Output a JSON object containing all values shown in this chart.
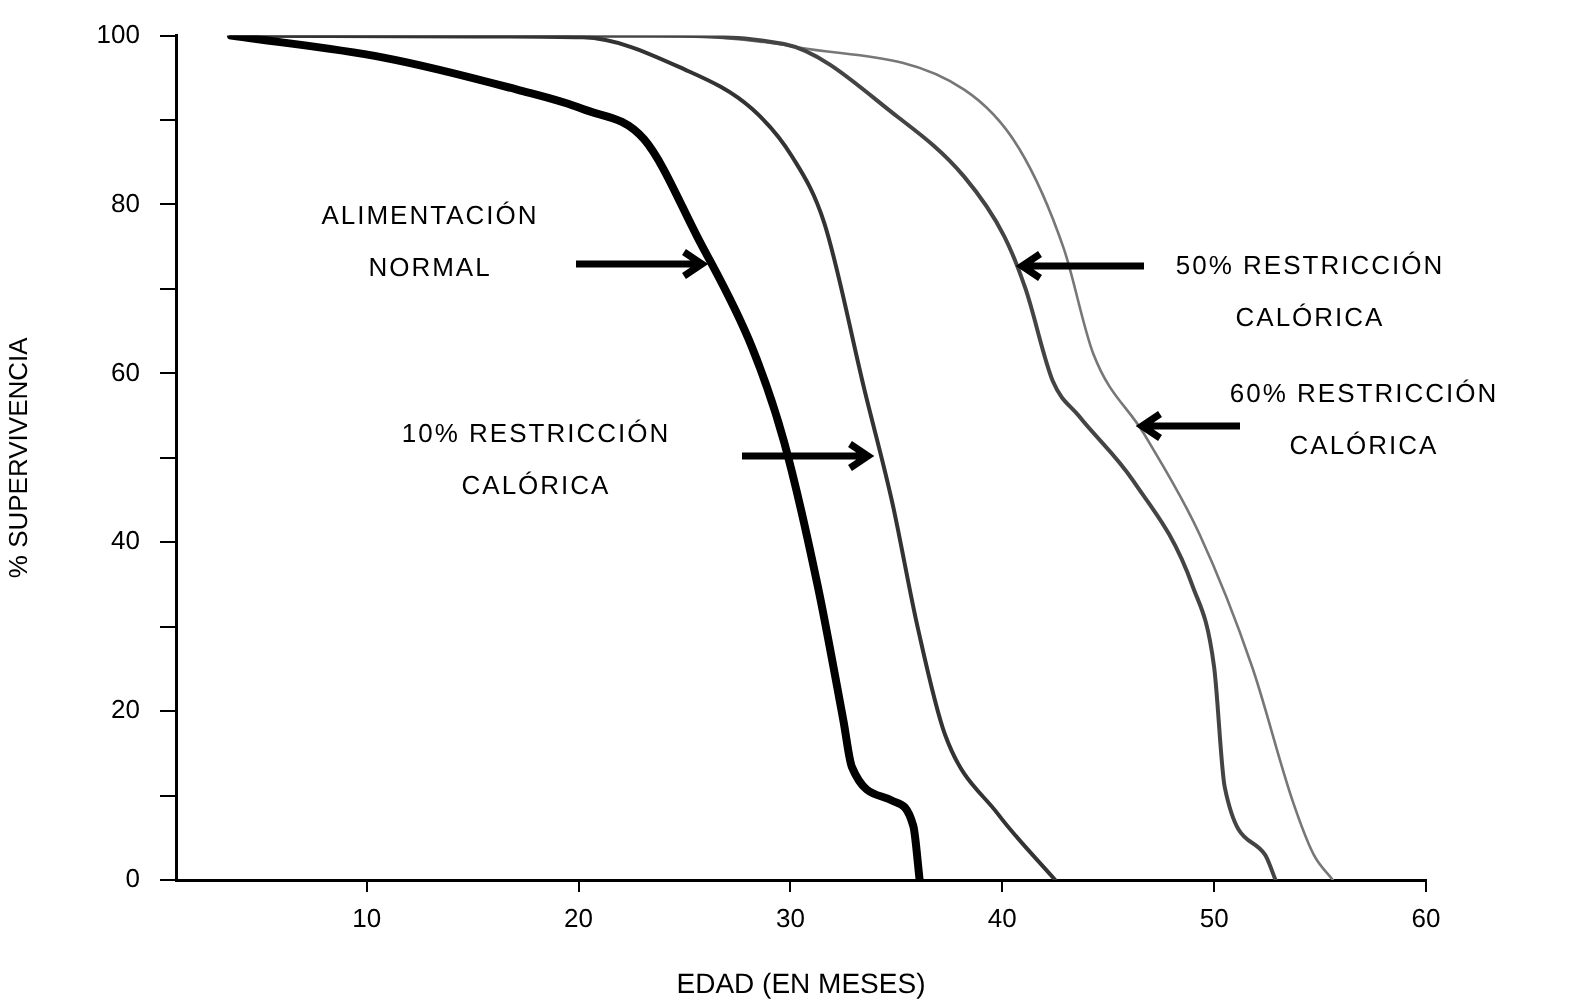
{
  "chart_data": {
    "type": "line",
    "xlabel": "EDAD (EN MESES)",
    "ylabel": "% SUPERVIVENCIA",
    "xlim": [
      1,
      60
    ],
    "xticks": [
      10,
      20,
      30,
      40,
      50,
      60
    ],
    "ylim": [
      0,
      100
    ],
    "yticks": [
      0,
      {
        "value": 10,
        "label": null
      },
      20,
      {
        "value": 30,
        "label": null
      },
      40,
      {
        "value": 50,
        "label": null
      },
      60,
      {
        "value": 70,
        "label": null
      },
      80,
      {
        "value": 90,
        "label": null
      },
      100
    ],
    "grid": false,
    "legend": false,
    "marker": "none",
    "line_style": "solid",
    "series": [
      {
        "color": "#000000",
        "x": [
          3.6,
          10.8,
          17.1,
          20.2,
          23.1,
          25.6,
          28.2,
          29.7,
          31.3,
          32.5,
          32.9,
          34.8,
          35.8,
          36.1
        ],
        "values": [
          100,
          97.4,
          93.6,
          91.3,
          87.7,
          76.2,
          63,
          51.9,
          34.7,
          18.9,
          13.4,
          9.4,
          6.4,
          0
        ]
      },
      {
        "color": "#333333",
        "x": [
          3.6,
          15,
          20.2,
          25,
          28.2,
          30.1,
          31.6,
          33.5,
          34.8,
          36,
          37.3,
          39.8,
          42.5
        ],
        "values": [
          100,
          99.9,
          99.8,
          96,
          91.3,
          85.6,
          77.8,
          58,
          44.8,
          30,
          17.2,
          7.8,
          0
        ]
      },
      {
        "color": "#444444",
        "x": [
          3.6,
          23.5,
          29.7,
          35.1,
          38.2,
          40.1,
          41.1,
          42.4,
          43.6,
          46.2,
          49,
          50,
          50.5,
          52.4,
          52.9
        ],
        "values": [
          100,
          100,
          99,
          90.3,
          83.3,
          76.2,
          70,
          59,
          55,
          47.2,
          34.7,
          25.2,
          11,
          3,
          0
        ]
      },
      {
        "color": "#777777",
        "x": [
          3.6,
          25,
          30.4,
          38.2,
          40.8,
          42.9,
          44.3,
          46.7,
          49.3,
          51.8,
          53.7,
          54.7,
          55.6
        ],
        "values": [
          100,
          99.9,
          98.6,
          93.6,
          86.6,
          74.8,
          62.3,
          52.8,
          41,
          25.2,
          9.4,
          3,
          0
        ]
      }
    ],
    "annotations": [
      "ALIMENTACIÓN NORMAL",
      "10% RESTRICCIÓN CALÓRICA",
      "50% RESTRICCIÓN CALÓRICA",
      "60% RESTRICCIÓN CALÓRICA"
    ]
  }
}
